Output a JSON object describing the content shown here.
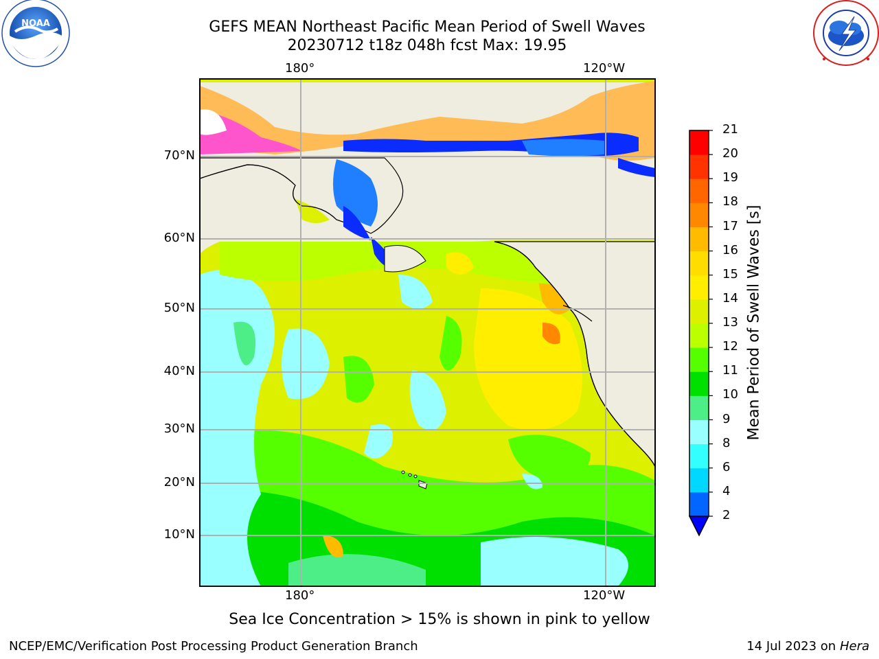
{
  "title": {
    "line1": "GEFS MEAN Northeast Pacific Mean Period of Swell Waves",
    "line2": "20230712 t18z 048h fcst   Max: 19.95"
  },
  "axes": {
    "lon_labels_top": [
      "180°",
      "120°W"
    ],
    "lon_labels_bottom": [
      "180°",
      "120°W"
    ],
    "lat_labels": [
      "70°N",
      "60°N",
      "50°N",
      "40°N",
      "30°N",
      "20°N",
      "10°N"
    ]
  },
  "colorbar": {
    "label": "Mean Period of Swell Waves [s]",
    "ticks": [
      "2",
      "4",
      "6",
      "8",
      "9",
      "10",
      "11",
      "12",
      "13",
      "14",
      "15",
      "16",
      "17",
      "18",
      "19",
      "20",
      "21"
    ],
    "colors": [
      "#0066ff",
      "#00d8ff",
      "#33ffff",
      "#99ffff",
      "#4dee88",
      "#00e000",
      "#55ff00",
      "#bbff00",
      "#ddf000",
      "#ffee00",
      "#ffdd00",
      "#ffbb00",
      "#ff8800",
      "#ff6600",
      "#ff3300",
      "#ff0000"
    ],
    "under_color": "#0000ff"
  },
  "caption": "Sea Ice Concentration > 15% is shown in pink to yellow",
  "footer": {
    "left": "NCEP/EMC/Verification Post Processing Product Generation Branch",
    "right_prefix": "14 Jul 2023 on ",
    "right_machine": "Hera"
  },
  "logos": {
    "noaa": {
      "text": "NOAA",
      "ring": "NATIONAL OCEANIC AND ATMOSPHERIC ADMINISTRATION • U.S. DEPARTMENT OF COMMERCE"
    },
    "nws": {
      "ring": "NATIONAL WEATHER SERVICE"
    }
  },
  "colors": {
    "land": "#efeddf",
    "grid": "#b0b0b0",
    "ice_pink": "#ff55cc",
    "ice_orange": "#ffbb55"
  }
}
